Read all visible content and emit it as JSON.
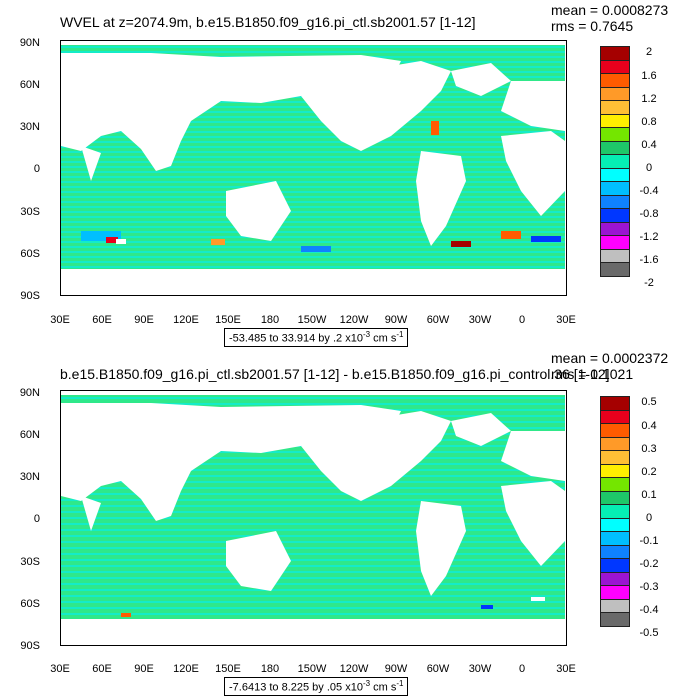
{
  "panels": [
    {
      "title": "WVEL at z=2074.9m, b.e15.B1850.f09_g16.pi_ctl.sb2001.57 [1-12]",
      "stats": {
        "mean": "mean = 0.0008273",
        "rms": "rms = 0.7645"
      },
      "range_label": {
        "prefix": "-53.485 to 33.914 by .2 x10",
        "exp": "-3",
        "suffix": " cm s",
        "unit_exp": "-1"
      },
      "colorbar_labels": [
        "2",
        "1.6",
        "1.2",
        "0.8",
        "0.4",
        "0",
        "-0.4",
        "-0.8",
        "-1.2",
        "-1.6",
        "-2"
      ]
    },
    {
      "title": "b.e15.B1850.f09_g16.pi_ctl.sb2001.57 [1-12] - b.e15.B1850.f09_g16.pi_control.36 [1-12]",
      "stats": {
        "mean": "mean = 0.0002372",
        "rms": "rms = 0.1021"
      },
      "range_label": {
        "prefix": "-7.6413 to 8.225 by .05 x10",
        "exp": "-3",
        "suffix": " cm s",
        "unit_exp": "-1"
      },
      "colorbar_labels": [
        "0.5",
        "0.4",
        "0.3",
        "0.2",
        "0.1",
        "0",
        "-0.1",
        "-0.2",
        "-0.3",
        "-0.4",
        "-0.5"
      ]
    }
  ],
  "lat_labels": [
    "90N",
    "60N",
    "30N",
    "0",
    "30S",
    "60S",
    "90S"
  ],
  "lon_labels": [
    "30E",
    "60E",
    "90E",
    "120E",
    "150E",
    "180",
    "150W",
    "120W",
    "90W",
    "60W",
    "30W",
    "0",
    "30E"
  ],
  "colors": {
    "ocean_main": "#2fe88a",
    "ocean_alt": "#14ecc8",
    "land": "#ffffff",
    "colorbar": [
      "#a50000",
      "#e8001c",
      "#ff5b00",
      "#ff9a28",
      "#ffbf35",
      "#ffee00",
      "#74e600",
      "#1ec869",
      "#05eeb4",
      "#00ffff",
      "#00bfff",
      "#0f82ff",
      "#0037ff",
      "#9b14d2",
      "#ff00ff",
      "#bfbfbf",
      "#6a6a6a"
    ]
  }
}
